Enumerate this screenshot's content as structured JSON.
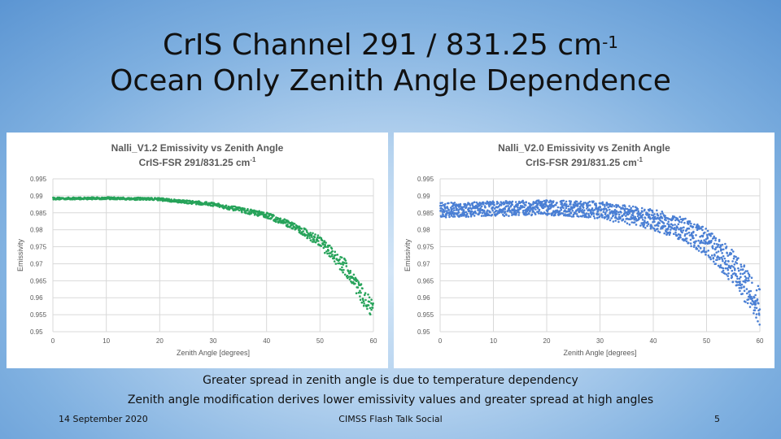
{
  "slide": {
    "title_line1": "CrIS Channel 291 / 831.25 cm",
    "title_sup": "-1",
    "title_line2": "Ocean Only Zenith Angle Dependence",
    "caption_line1": "Greater spread in zenith angle is due to temperature dependency",
    "caption_line2": "Zenith angle modification derives lower emissivity values and greater spread at high angles",
    "footer_date": "14 September 2020",
    "footer_center": "CIMSS Flash Talk Social",
    "footer_page": "5"
  },
  "chart_data": [
    {
      "type": "scatter",
      "title": "Nalli_V1.2 Emissivity vs Zenith Angle",
      "subtitle": "CrIS-FSR 291/831.25 cm",
      "subtitle_sup": "-1",
      "xlabel": "Zenith Angle [degrees]",
      "ylabel": "Emissivity",
      "xlim": [
        0,
        60
      ],
      "ylim": [
        0.95,
        0.995
      ],
      "xticks": [
        "0",
        "10",
        "20",
        "30",
        "40",
        "50",
        "60"
      ],
      "yticks": [
        "0.95",
        "0.955",
        "0.96",
        "0.965",
        "0.97",
        "0.975",
        "0.98",
        "0.985",
        "0.99",
        "0.995"
      ],
      "grid": true,
      "color": "#27a35a",
      "trend": [
        {
          "x": 0,
          "y": 0.9892,
          "spread": 0.0003
        },
        {
          "x": 10,
          "y": 0.9893,
          "spread": 0.0003
        },
        {
          "x": 20,
          "y": 0.989,
          "spread": 0.0004
        },
        {
          "x": 30,
          "y": 0.9875,
          "spread": 0.0005
        },
        {
          "x": 40,
          "y": 0.9843,
          "spread": 0.0008
        },
        {
          "x": 45,
          "y": 0.9812,
          "spread": 0.001
        },
        {
          "x": 50,
          "y": 0.9765,
          "spread": 0.0015
        },
        {
          "x": 55,
          "y": 0.9685,
          "spread": 0.0025
        },
        {
          "x": 60,
          "y": 0.9555,
          "spread": 0.003
        }
      ]
    },
    {
      "type": "scatter",
      "title": "Nalli_V2.0 Emissivity vs Zenith Angle",
      "subtitle": "CrIS-FSR 291/831.25 cm",
      "subtitle_sup": "-1",
      "xlabel": "Zenith Angle [degrees]",
      "ylabel": "Emissivity",
      "xlim": [
        0,
        60
      ],
      "ylim": [
        0.95,
        0.995
      ],
      "xticks": [
        "0",
        "10",
        "20",
        "30",
        "40",
        "50",
        "60"
      ],
      "yticks": [
        "0.95",
        "0.955",
        "0.96",
        "0.965",
        "0.97",
        "0.975",
        "0.98",
        "0.985",
        "0.99",
        "0.995"
      ],
      "grid": true,
      "color": "#4a7fd4",
      "trend": [
        {
          "x": 0,
          "y": 0.9858,
          "spread": 0.0022
        },
        {
          "x": 10,
          "y": 0.9862,
          "spread": 0.0022
        },
        {
          "x": 20,
          "y": 0.9865,
          "spread": 0.0022
        },
        {
          "x": 30,
          "y": 0.9858,
          "spread": 0.0025
        },
        {
          "x": 40,
          "y": 0.983,
          "spread": 0.003
        },
        {
          "x": 45,
          "y": 0.9805,
          "spread": 0.0035
        },
        {
          "x": 50,
          "y": 0.9765,
          "spread": 0.004
        },
        {
          "x": 55,
          "y": 0.969,
          "spread": 0.005
        },
        {
          "x": 60,
          "y": 0.9575,
          "spread": 0.0055
        }
      ]
    }
  ]
}
